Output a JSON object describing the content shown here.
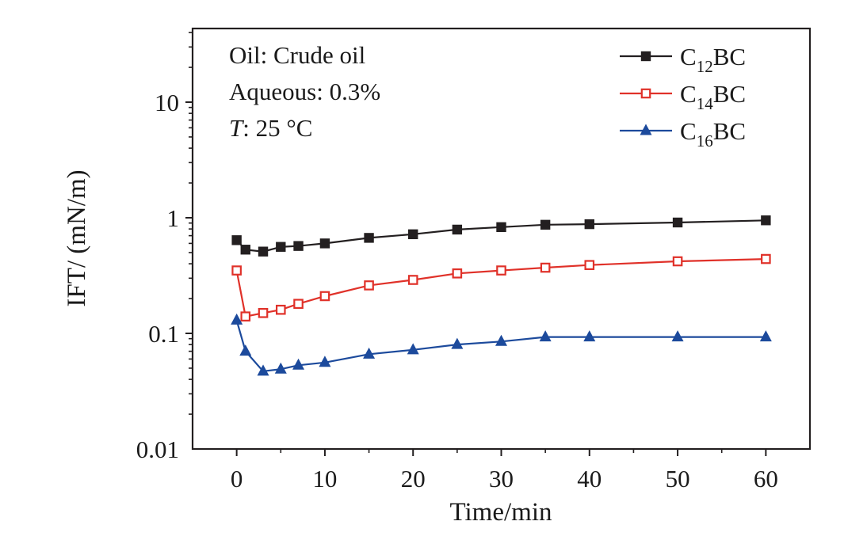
{
  "chart_data": {
    "type": "line",
    "xlabel": "Time/min",
    "ylabel": "IFT/ (mN/m)",
    "x_ticks": [
      "0",
      "10",
      "20",
      "30",
      "40",
      "50",
      "60"
    ],
    "y_ticks": [
      "0.01",
      "0.1",
      "1",
      "10"
    ],
    "xlim": [
      -5,
      65
    ],
    "ylim": [
      0.01,
      50
    ],
    "y_scale": "log",
    "grid": false,
    "legend_position": "top-right",
    "annotations": [
      {
        "prefix": "Oil: Crude oil"
      },
      {
        "prefix": "Aqueous: 0.3%"
      },
      {
        "italic": "T",
        "prefix": ": 25 °C"
      }
    ],
    "series": [
      {
        "name": "C12BC",
        "sym": "C",
        "sub": "12",
        "suffix": "BC",
        "color": "#231f20",
        "marker": "square-filled",
        "x": [
          0,
          1,
          3,
          5,
          7,
          10,
          15,
          20,
          25,
          30,
          35,
          40,
          50,
          60
        ],
        "y": [
          0.64,
          0.53,
          0.51,
          0.56,
          0.57,
          0.6,
          0.67,
          0.72,
          0.79,
          0.83,
          0.87,
          0.88,
          0.91,
          0.95
        ]
      },
      {
        "name": "C14BC",
        "sym": "C",
        "sub": "14",
        "suffix": "BC",
        "color": "#e03129",
        "marker": "square-open",
        "x": [
          0,
          1,
          3,
          5,
          7,
          10,
          15,
          20,
          25,
          30,
          35,
          40,
          50,
          60
        ],
        "y": [
          0.35,
          0.14,
          0.15,
          0.16,
          0.18,
          0.21,
          0.26,
          0.29,
          0.33,
          0.35,
          0.37,
          0.39,
          0.42,
          0.44
        ]
      },
      {
        "name": "C16BC",
        "sym": "C",
        "sub": "16",
        "suffix": "BC",
        "color": "#1c4a9c",
        "marker": "triangle-filled",
        "x": [
          0,
          1,
          3,
          5,
          7,
          10,
          15,
          20,
          25,
          30,
          35,
          40,
          50,
          60
        ],
        "y": [
          0.13,
          0.07,
          0.047,
          0.049,
          0.053,
          0.056,
          0.066,
          0.072,
          0.08,
          0.085,
          0.093,
          0.093,
          0.093,
          0.093
        ]
      }
    ]
  }
}
